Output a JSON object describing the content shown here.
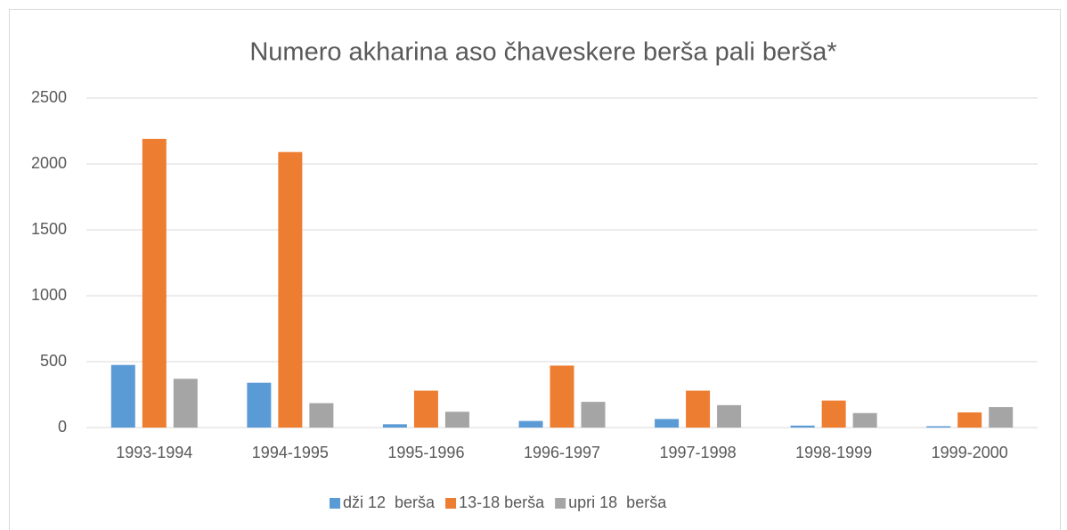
{
  "chart_data": {
    "type": "bar",
    "title": "Numero akharina aso čhaveskere berša pali berša*",
    "categories": [
      "1993-1994",
      "1994-1995",
      "1995-1996",
      "1996-1997",
      "1997-1998",
      "1998-1999",
      "1999-2000"
    ],
    "series": [
      {
        "name": "dži 12  berša",
        "color": "#5b9bd5",
        "values": [
          475,
          340,
          25,
          50,
          65,
          15,
          10
        ]
      },
      {
        "name": "13-18 berša",
        "color": "#ed7d31",
        "values": [
          2190,
          2090,
          280,
          470,
          280,
          205,
          115
        ]
      },
      {
        "name": "upri 18  berša",
        "color": "#a5a5a5",
        "values": [
          370,
          185,
          120,
          195,
          170,
          110,
          155
        ]
      }
    ],
    "ylim": [
      0,
      2500
    ],
    "yticks": [
      0,
      500,
      1000,
      1500,
      2000,
      2500
    ],
    "grid": true,
    "legend": "bottom"
  }
}
